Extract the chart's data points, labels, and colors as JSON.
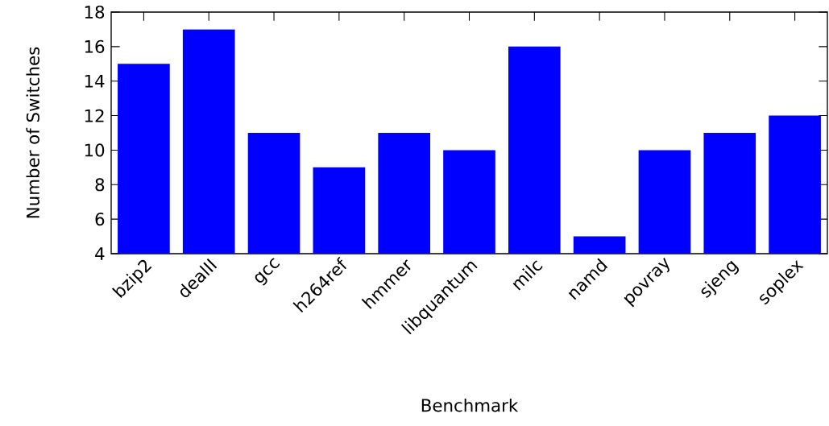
{
  "chart_data": {
    "type": "bar",
    "xlabel": "Benchmark",
    "ylabel": "Number of Switches",
    "categories": [
      "bzip2",
      "dealII",
      "gcc",
      "h264ref",
      "hmmer",
      "libquantum",
      "milc",
      "namd",
      "povray",
      "sjeng",
      "soplex"
    ],
    "values": [
      15,
      17,
      11,
      9,
      11,
      10,
      16,
      5,
      10,
      11,
      12
    ],
    "color": "#0000ff",
    "ylim": [
      4,
      18
    ],
    "yticks": [
      4,
      6,
      8,
      10,
      12,
      14,
      16,
      18
    ],
    "grid": false
  }
}
